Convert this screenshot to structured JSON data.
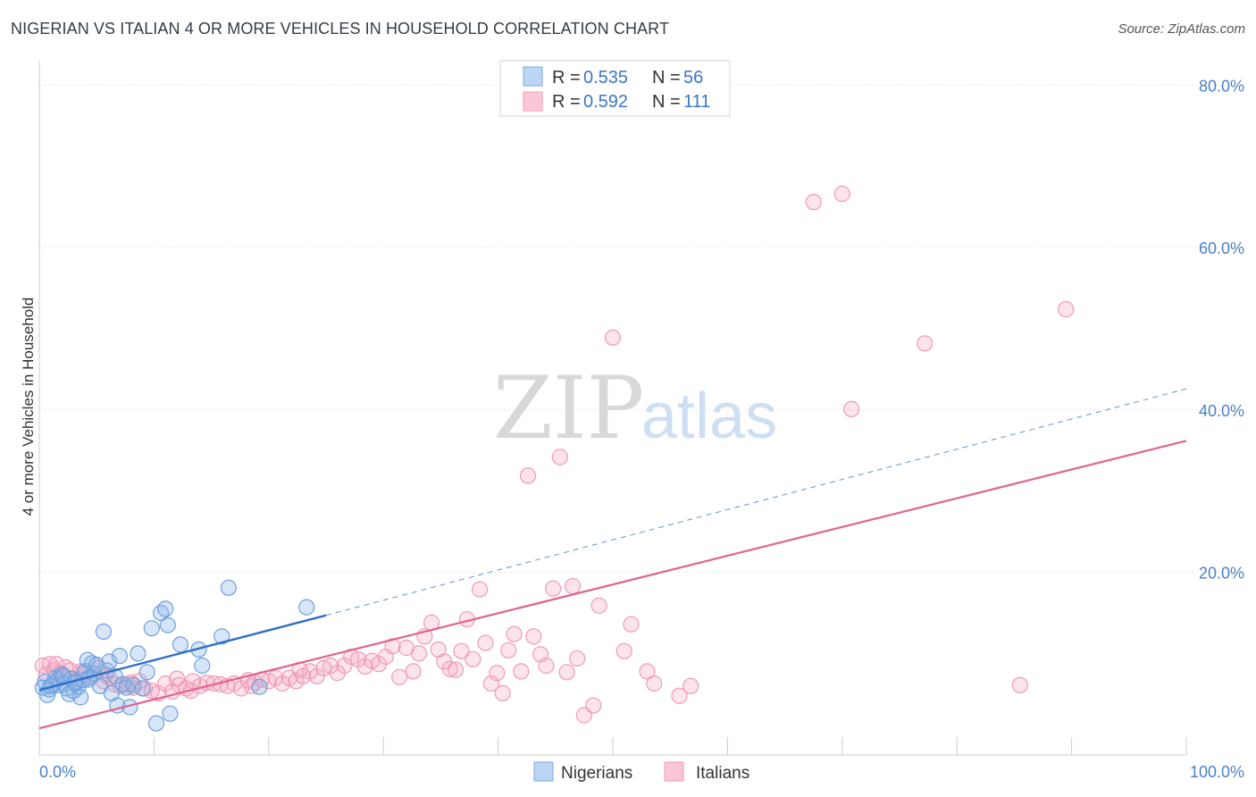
{
  "title": "NIGERIAN VS ITALIAN 4 OR MORE VEHICLES IN HOUSEHOLD CORRELATION CHART",
  "source": "Source: ZipAtlas.com",
  "watermark": {
    "zip": "ZIP",
    "atlas": "atlas"
  },
  "legend": {
    "series1": {
      "r_label": "R = ",
      "r_value": "0.535",
      "n_label": "N = ",
      "n_value": "56"
    },
    "series2": {
      "r_label": "R = ",
      "r_value": "0.592",
      "n_label": "N = ",
      "n_value": "111"
    }
  },
  "chart_data": {
    "type": "scatter",
    "title": "NIGERIAN VS ITALIAN 4 OR MORE VEHICLES IN HOUSEHOLD CORRELATION CHART",
    "xlabel": "",
    "ylabel": "4 or more Vehicles in Household",
    "xlim": [
      0,
      100
    ],
    "ylim": [
      -2.5,
      83
    ],
    "x_tick_labels": [
      "0.0%",
      "100.0%"
    ],
    "y_ticks": [
      20,
      40,
      60,
      80
    ],
    "y_tick_labels": [
      "20.0%",
      "40.0%",
      "60.0%",
      "80.0%"
    ],
    "grid": true,
    "legend_position": "top-center",
    "colors": {
      "Nigerians": "#8ab4e8",
      "Italians": "#f4a7bf",
      "Nigerians_line": "#2f6fc4",
      "Italians_line": "#e0648d"
    },
    "series": [
      {
        "name": "Nigerians",
        "trend": {
          "x": [
            0,
            25
          ],
          "y": [
            5.5,
            14.7
          ]
        },
        "trend_extended": {
          "x": [
            25,
            100
          ],
          "y": [
            14.7,
            42.6
          ]
        },
        "points": [
          [
            0.3,
            5.8
          ],
          [
            0.5,
            6.5
          ],
          [
            0.7,
            4.9
          ],
          [
            0.9,
            5.6
          ],
          [
            1.2,
            6.2
          ],
          [
            1.4,
            7.0
          ],
          [
            1.6,
            6.8
          ],
          [
            1.8,
            6.1
          ],
          [
            2.0,
            7.4
          ],
          [
            2.2,
            6.3
          ],
          [
            2.4,
            5.7
          ],
          [
            2.6,
            5.0
          ],
          [
            2.8,
            6.9
          ],
          [
            3.0,
            5.4
          ],
          [
            3.2,
            6.4
          ],
          [
            3.4,
            5.9
          ],
          [
            3.6,
            4.6
          ],
          [
            3.8,
            6.7
          ],
          [
            4.0,
            7.8
          ],
          [
            4.2,
            9.2
          ],
          [
            4.4,
            7.1
          ],
          [
            4.6,
            8.8
          ],
          [
            4.8,
            7.5
          ],
          [
            5.0,
            8.6
          ],
          [
            5.3,
            6.0
          ],
          [
            5.6,
            12.7
          ],
          [
            5.9,
            7.9
          ],
          [
            6.1,
            9.0
          ],
          [
            6.3,
            5.1
          ],
          [
            6.6,
            7.2
          ],
          [
            6.8,
            3.6
          ],
          [
            7.0,
            9.7
          ],
          [
            7.3,
            6.2
          ],
          [
            7.6,
            5.8
          ],
          [
            7.9,
            3.4
          ],
          [
            8.2,
            6.1
          ],
          [
            8.6,
            10.0
          ],
          [
            9.0,
            5.7
          ],
          [
            9.4,
            7.7
          ],
          [
            9.8,
            13.1
          ],
          [
            10.2,
            1.4
          ],
          [
            10.6,
            15.0
          ],
          [
            11.0,
            15.5
          ],
          [
            11.2,
            13.5
          ],
          [
            11.4,
            2.6
          ],
          [
            12.3,
            11.1
          ],
          [
            13.9,
            10.5
          ],
          [
            14.2,
            8.5
          ],
          [
            15.9,
            12.1
          ],
          [
            16.5,
            18.1
          ],
          [
            19.2,
            5.9
          ],
          [
            23.3,
            15.7
          ],
          [
            1.0,
            6.0
          ],
          [
            2.1,
            7.2
          ],
          [
            3.1,
            6.5
          ],
          [
            4.3,
            6.8
          ]
        ]
      },
      {
        "name": "Italians",
        "trend": {
          "x": [
            0,
            100
          ],
          "y": [
            0.8,
            36.2
          ]
        },
        "points": [
          [
            0.3,
            8.5
          ],
          [
            0.6,
            7.4
          ],
          [
            0.9,
            8.7
          ],
          [
            1.3,
            8.0
          ],
          [
            1.8,
            7.6
          ],
          [
            2.3,
            8.3
          ],
          [
            2.7,
            7.9
          ],
          [
            3.1,
            6.8
          ],
          [
            3.6,
            7.8
          ],
          [
            4.1,
            7.5
          ],
          [
            4.6,
            7.2
          ],
          [
            5.1,
            8.2
          ],
          [
            5.6,
            6.6
          ],
          [
            6.1,
            7.0
          ],
          [
            6.6,
            6.2
          ],
          [
            7.1,
            6.0
          ],
          [
            7.7,
            6.2
          ],
          [
            8.2,
            5.8
          ],
          [
            8.7,
            6.6
          ],
          [
            9.2,
            5.7
          ],
          [
            9.8,
            5.4
          ],
          [
            10.4,
            5.1
          ],
          [
            11.0,
            6.3
          ],
          [
            11.6,
            5.3
          ],
          [
            12.2,
            6.1
          ],
          [
            12.8,
            5.7
          ],
          [
            13.4,
            6.6
          ],
          [
            14.0,
            6.0
          ],
          [
            14.6,
            6.4
          ],
          [
            15.2,
            6.3
          ],
          [
            15.8,
            6.2
          ],
          [
            16.4,
            6.0
          ],
          [
            17.0,
            6.3
          ],
          [
            17.6,
            5.7
          ],
          [
            18.2,
            6.7
          ],
          [
            18.8,
            6.4
          ],
          [
            19.4,
            6.8
          ],
          [
            20.0,
            6.6
          ],
          [
            20.6,
            7.0
          ],
          [
            21.2,
            6.3
          ],
          [
            21.8,
            7.0
          ],
          [
            22.4,
            6.6
          ],
          [
            23.0,
            7.2
          ],
          [
            23.6,
            7.8
          ],
          [
            24.2,
            7.2
          ],
          [
            24.8,
            8.2
          ],
          [
            25.4,
            8.5
          ],
          [
            26.0,
            7.6
          ],
          [
            26.6,
            8.5
          ],
          [
            27.2,
            9.6
          ],
          [
            27.8,
            9.3
          ],
          [
            28.4,
            8.4
          ],
          [
            29.0,
            9.1
          ],
          [
            29.6,
            8.7
          ],
          [
            30.2,
            9.6
          ],
          [
            30.8,
            10.9
          ],
          [
            31.4,
            7.1
          ],
          [
            32.0,
            10.7
          ],
          [
            32.6,
            7.8
          ],
          [
            33.1,
            10.0
          ],
          [
            33.6,
            12.1
          ],
          [
            34.2,
            13.8
          ],
          [
            34.8,
            10.5
          ],
          [
            35.3,
            9.0
          ],
          [
            35.8,
            8.1
          ],
          [
            36.3,
            8.0
          ],
          [
            36.8,
            10.3
          ],
          [
            37.3,
            14.2
          ],
          [
            37.8,
            9.3
          ],
          [
            38.4,
            17.9
          ],
          [
            38.9,
            11.3
          ],
          [
            39.4,
            6.3
          ],
          [
            39.9,
            7.6
          ],
          [
            40.4,
            5.1
          ],
          [
            40.9,
            10.4
          ],
          [
            41.4,
            12.4
          ],
          [
            42.0,
            7.8
          ],
          [
            42.6,
            31.9
          ],
          [
            43.1,
            12.1
          ],
          [
            43.7,
            9.9
          ],
          [
            44.2,
            8.5
          ],
          [
            44.8,
            18.0
          ],
          [
            45.4,
            34.2
          ],
          [
            46.0,
            7.7
          ],
          [
            46.5,
            18.3
          ],
          [
            46.9,
            9.4
          ],
          [
            47.5,
            2.4
          ],
          [
            48.3,
            3.6
          ],
          [
            48.8,
            15.9
          ],
          [
            50.0,
            48.9
          ],
          [
            51.0,
            10.3
          ],
          [
            51.6,
            13.6
          ],
          [
            53.0,
            7.8
          ],
          [
            53.6,
            6.3
          ],
          [
            55.8,
            4.8
          ],
          [
            56.8,
            6.0
          ],
          [
            67.5,
            65.6
          ],
          [
            70.0,
            66.6
          ],
          [
            70.8,
            40.1
          ],
          [
            77.2,
            48.2
          ],
          [
            85.5,
            6.1
          ],
          [
            89.5,
            52.4
          ],
          [
            1.5,
            8.7
          ],
          [
            2.5,
            7.0
          ],
          [
            3.8,
            7.6
          ],
          [
            5.8,
            7.4
          ],
          [
            8.0,
            6.4
          ],
          [
            12.0,
            6.9
          ],
          [
            13.2,
            5.4
          ],
          [
            18.5,
            6.0
          ],
          [
            22.7,
            8.0
          ]
        ]
      }
    ]
  }
}
